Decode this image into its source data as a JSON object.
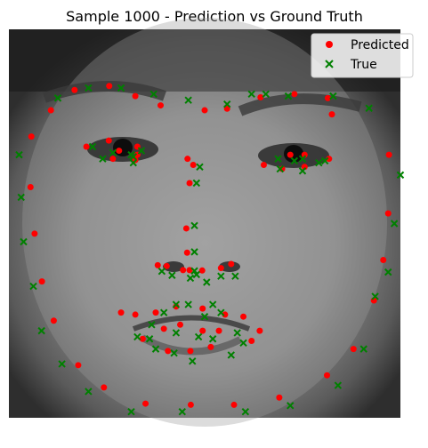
{
  "chart_data": {
    "type": "scatter",
    "title": "Sample 1000 - Prediction vs Ground Truth",
    "xlabel": "",
    "ylabel": "",
    "xlim": [
      0,
      96
    ],
    "ylim": [
      96,
      0
    ],
    "grid": false,
    "axes_visible": false,
    "background": "grayscale face photograph",
    "legend": {
      "placement": "top-right",
      "entries": [
        "Predicted",
        "True"
      ]
    },
    "series": [
      {
        "name": "Predicted",
        "marker": "circle",
        "color": "#ff0000",
        "points": [
          [
            5.5,
            26.5
          ],
          [
            5.3,
            39
          ],
          [
            6.3,
            50.5
          ],
          [
            8.1,
            62.3
          ],
          [
            11,
            72
          ],
          [
            17,
            83
          ],
          [
            23.3,
            88.5
          ],
          [
            33.5,
            92.5
          ],
          [
            44.6,
            92.8
          ],
          [
            55.2,
            92.8
          ],
          [
            66.3,
            91
          ],
          [
            78,
            85.5
          ],
          [
            84.5,
            79
          ],
          [
            89.5,
            67
          ],
          [
            91.8,
            57
          ],
          [
            93,
            45.5
          ],
          [
            93.2,
            31
          ],
          [
            10.3,
            20
          ],
          [
            16.1,
            15
          ],
          [
            24.6,
            14
          ],
          [
            31,
            16.5
          ],
          [
            37.2,
            18.8
          ],
          [
            48,
            20
          ],
          [
            53.5,
            19.6
          ],
          [
            61.7,
            16.8
          ],
          [
            70,
            16
          ],
          [
            78.2,
            17
          ],
          [
            79.2,
            21
          ],
          [
            43.8,
            32
          ],
          [
            45.2,
            33.5
          ],
          [
            44.3,
            38
          ],
          [
            43.5,
            49.2
          ],
          [
            43.7,
            55.2
          ],
          [
            44.3,
            59.5
          ],
          [
            36.5,
            58.3
          ],
          [
            38.7,
            58.5
          ],
          [
            42.7,
            59.5
          ],
          [
            47.4,
            59.6
          ],
          [
            52,
            59
          ],
          [
            54.5,
            58
          ],
          [
            19,
            29
          ],
          [
            24.5,
            27.5
          ],
          [
            27,
            30
          ],
          [
            31.5,
            29
          ],
          [
            31.5,
            31
          ],
          [
            25.5,
            32
          ],
          [
            31,
            32.3
          ],
          [
            69,
            31
          ],
          [
            72.5,
            31
          ],
          [
            78.5,
            32
          ],
          [
            72.5,
            34
          ],
          [
            67,
            34.5
          ],
          [
            62.5,
            33.5
          ],
          [
            27.5,
            70
          ],
          [
            31,
            70.5
          ],
          [
            36,
            70
          ],
          [
            41,
            68.5
          ],
          [
            47.5,
            69
          ],
          [
            53,
            70.5
          ],
          [
            57.5,
            71
          ],
          [
            61.5,
            74.5
          ],
          [
            59.5,
            77
          ],
          [
            49.5,
            78.5
          ],
          [
            44.5,
            79.5
          ],
          [
            39,
            79.5
          ],
          [
            32.8,
            76.5
          ],
          [
            38,
            74
          ],
          [
            42,
            73
          ],
          [
            47.5,
            74.5
          ],
          [
            51.5,
            74.5
          ]
        ]
      },
      {
        "name": "True",
        "marker": "x",
        "color": "#008000",
        "points": [
          [
            2.5,
            31
          ],
          [
            3,
            41.5
          ],
          [
            3.6,
            52.5
          ],
          [
            6,
            63.5
          ],
          [
            8,
            74.5
          ],
          [
            13,
            82.7
          ],
          [
            19.5,
            89.5
          ],
          [
            30,
            94.5
          ],
          [
            42.5,
            94.5
          ],
          [
            58,
            94.5
          ],
          [
            69,
            93
          ],
          [
            80.7,
            88
          ],
          [
            87,
            79
          ],
          [
            89.8,
            66
          ],
          [
            93,
            60
          ],
          [
            94.5,
            48
          ],
          [
            96,
            36
          ],
          [
            12,
            17
          ],
          [
            19.5,
            14.5
          ],
          [
            27.5,
            14.5
          ],
          [
            35.5,
            16
          ],
          [
            44,
            17.5
          ],
          [
            53.5,
            18.5
          ],
          [
            59.5,
            16
          ],
          [
            63,
            16
          ],
          [
            68.5,
            16.5
          ],
          [
            79.5,
            16.5
          ],
          [
            88.3,
            19.5
          ],
          [
            46,
            38
          ],
          [
            46.8,
            34
          ],
          [
            45.5,
            48.5
          ],
          [
            45.5,
            55
          ],
          [
            45.5,
            59.7
          ],
          [
            46,
            60.6
          ],
          [
            37.5,
            59.8
          ],
          [
            40,
            60.8
          ],
          [
            44.5,
            61.5
          ],
          [
            48.5,
            62.5
          ],
          [
            52,
            61
          ],
          [
            55.5,
            61
          ],
          [
            20.5,
            29
          ],
          [
            25.5,
            30.5
          ],
          [
            30,
            31
          ],
          [
            32.5,
            30
          ],
          [
            30.5,
            31.5
          ],
          [
            23,
            32
          ],
          [
            30.5,
            33
          ],
          [
            66,
            32
          ],
          [
            70,
            32.5
          ],
          [
            72,
            32
          ],
          [
            76,
            33
          ],
          [
            77.5,
            32.5
          ],
          [
            66.5,
            34.5
          ],
          [
            72,
            35
          ],
          [
            31.5,
            76
          ],
          [
            35,
            73
          ],
          [
            38,
            70
          ],
          [
            41,
            68
          ],
          [
            44,
            68
          ],
          [
            50,
            68
          ],
          [
            52,
            70
          ],
          [
            56,
            75
          ],
          [
            57.5,
            77.5
          ],
          [
            54.5,
            80.5
          ],
          [
            45,
            82
          ],
          [
            40.5,
            80
          ],
          [
            36,
            79
          ],
          [
            34.5,
            76.5
          ],
          [
            41,
            75
          ],
          [
            46.5,
            76
          ],
          [
            50,
            76.5
          ],
          [
            48,
            71
          ]
        ]
      }
    ]
  }
}
